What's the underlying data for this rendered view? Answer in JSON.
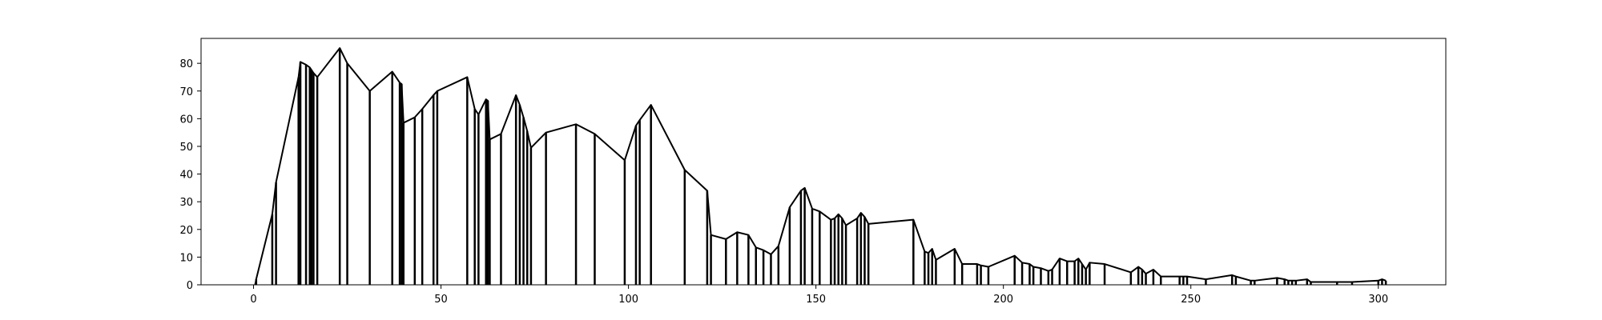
{
  "chart_data": {
    "type": "line",
    "title": "",
    "xlabel": "",
    "ylabel": "",
    "xlim": [
      -14,
      318
    ],
    "ylim": [
      0,
      89
    ],
    "xticks": [
      0,
      50,
      100,
      150,
      200,
      250,
      300
    ],
    "yticks": [
      0,
      10,
      20,
      30,
      40,
      50,
      60,
      70,
      80
    ],
    "grid": false,
    "legend": "none",
    "line_color": "#000000",
    "drop_lines": true,
    "points": [
      [
        0.5,
        0.5
      ],
      [
        0.7,
        2.0
      ],
      [
        5,
        25.5
      ],
      [
        6,
        37
      ],
      [
        12,
        75
      ],
      [
        12.5,
        80.5
      ],
      [
        14,
        79.5
      ],
      [
        15,
        78.5
      ],
      [
        15.5,
        77.5
      ],
      [
        16,
        76.5
      ],
      [
        17,
        75
      ],
      [
        23,
        85.5
      ],
      [
        25,
        80
      ],
      [
        31,
        70
      ],
      [
        37,
        77
      ],
      [
        39,
        73
      ],
      [
        39.5,
        72.5
      ],
      [
        40,
        58.5
      ],
      [
        43,
        60.5
      ],
      [
        45,
        63.5
      ],
      [
        48,
        68.5
      ],
      [
        49,
        70
      ],
      [
        57,
        75
      ],
      [
        59,
        63.5
      ],
      [
        60,
        61.5
      ],
      [
        62,
        67
      ],
      [
        62.5,
        66.5
      ],
      [
        63,
        52.5
      ],
      [
        66,
        54.5
      ],
      [
        70,
        68.5
      ],
      [
        71,
        65
      ],
      [
        72,
        60.5
      ],
      [
        73,
        55.5
      ],
      [
        74,
        49.5
      ],
      [
        78,
        55
      ],
      [
        86,
        58
      ],
      [
        91,
        54.5
      ],
      [
        99,
        45
      ],
      [
        102,
        57.5
      ],
      [
        103,
        59.5
      ],
      [
        106,
        65
      ],
      [
        115,
        41.5
      ],
      [
        121,
        34
      ],
      [
        122,
        18
      ],
      [
        126,
        16.5
      ],
      [
        129,
        19
      ],
      [
        132,
        18
      ],
      [
        134,
        13.5
      ],
      [
        136,
        12.5
      ],
      [
        138,
        11
      ],
      [
        140,
        14
      ],
      [
        143,
        28
      ],
      [
        146,
        34
      ],
      [
        147,
        35
      ],
      [
        149,
        27.5
      ],
      [
        151,
        26.5
      ],
      [
        154,
        23.5
      ],
      [
        155,
        24
      ],
      [
        156,
        25.5
      ],
      [
        157,
        24
      ],
      [
        158,
        21.5
      ],
      [
        161,
        24
      ],
      [
        162,
        26
      ],
      [
        163,
        24.5
      ],
      [
        164,
        22
      ],
      [
        176,
        23.5
      ],
      [
        179,
        12
      ],
      [
        180,
        11.5
      ],
      [
        181,
        13
      ],
      [
        182,
        9
      ],
      [
        187,
        13
      ],
      [
        189,
        7.5
      ],
      [
        193,
        7.5
      ],
      [
        194,
        7
      ],
      [
        196,
        6.5
      ],
      [
        203,
        10.5
      ],
      [
        205,
        8
      ],
      [
        207,
        7.5
      ],
      [
        208,
        6.5
      ],
      [
        210,
        6
      ],
      [
        212,
        5
      ],
      [
        213,
        5.5
      ],
      [
        215,
        9.5
      ],
      [
        217,
        8.5
      ],
      [
        219,
        8.5
      ],
      [
        220,
        9.5
      ],
      [
        221,
        7.5
      ],
      [
        222,
        5.5
      ],
      [
        223,
        8
      ],
      [
        227,
        7.5
      ],
      [
        234,
        4.5
      ],
      [
        236,
        6.5
      ],
      [
        237,
        5.5
      ],
      [
        238,
        4
      ],
      [
        240,
        5.5
      ],
      [
        242,
        3
      ],
      [
        247,
        3
      ],
      [
        248,
        3
      ],
      [
        249,
        3
      ],
      [
        254,
        2
      ],
      [
        261,
        3.5
      ],
      [
        262,
        3
      ],
      [
        266,
        1.5
      ],
      [
        267,
        1.5
      ],
      [
        273,
        2.5
      ],
      [
        275,
        2
      ],
      [
        276,
        1.5
      ],
      [
        277,
        1.5
      ],
      [
        278,
        1.5
      ],
      [
        281,
        2
      ],
      [
        282,
        1
      ],
      [
        289,
        1
      ],
      [
        293,
        1
      ],
      [
        300,
        1.5
      ],
      [
        301,
        2
      ],
      [
        302,
        1.5
      ]
    ]
  }
}
